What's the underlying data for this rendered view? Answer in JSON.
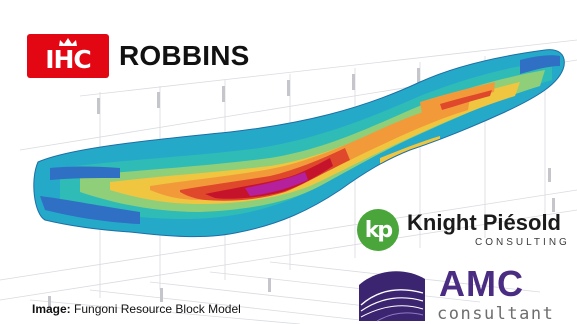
{
  "logos": {
    "ihc": {
      "mark": "IHC",
      "wordmark": "ROBBINS",
      "color": "#e30613"
    },
    "knight_piesold": {
      "monogram": "kp",
      "name": "Knight Piésold",
      "sub": "CONSULTING",
      "color": "#4aa63b"
    },
    "amc": {
      "name": "AMC",
      "sub": "consultant",
      "color": "#4b2c83"
    }
  },
  "caption": {
    "label": "Image:",
    "text": "Fungoni Resource Block Model"
  },
  "visual": {
    "subject": "3D resource block model colored by grade (blue low to magenta high)"
  }
}
